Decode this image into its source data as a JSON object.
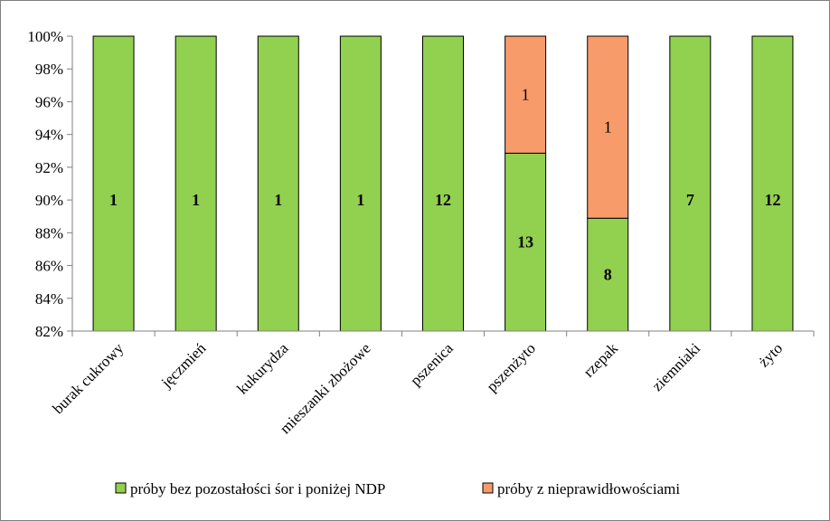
{
  "chart_data": {
    "type": "bar",
    "stacked": "percent",
    "categories": [
      "burak cukrowy",
      "jęczmień",
      "kukurydza",
      "mieszanki zbożowe",
      "pszenica",
      "pszenżyto",
      "rzepak",
      "ziemniaki",
      "żyto"
    ],
    "series": [
      {
        "name": "próby bez pozostałości śor i poniżej NDP",
        "color": "#92d050",
        "values": [
          1,
          1,
          1,
          1,
          12,
          13,
          8,
          7,
          12
        ],
        "labels": [
          "1",
          "1",
          "1",
          "1",
          "12",
          "13",
          "8",
          "7",
          "12"
        ]
      },
      {
        "name": "próby z nieprawidłowościami",
        "color": "#f79b6b",
        "values": [
          0,
          0,
          0,
          0,
          0,
          1,
          1,
          0,
          0
        ],
        "labels": [
          "",
          "",
          "",
          "",
          "",
          "1",
          "1",
          "",
          ""
        ]
      }
    ],
    "ylim": [
      82,
      100
    ],
    "y_ticks": [
      "82%",
      "84%",
      "86%",
      "88%",
      "90%",
      "92%",
      "94%",
      "96%",
      "98%",
      "100%"
    ],
    "legend_position": "bottom",
    "grid": false
  }
}
